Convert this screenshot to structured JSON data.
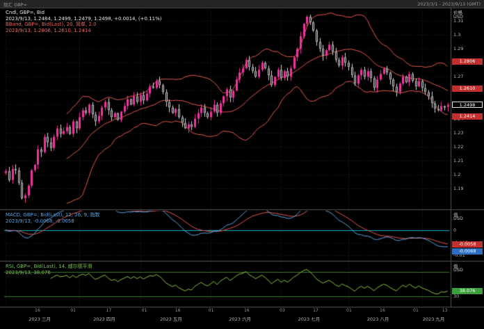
{
  "window": {
    "title_left": "现汇 GBP=",
    "title_right": "2023/3/1 - 2023/9/13 (GMT)"
  },
  "panels": {
    "price": {
      "legend": [
        {
          "text": "Cndl, GBP=, Bid"
        },
        {
          "text": "2023/9/13, 1.2484, 1.2499, 1.2479, 1.2498, +0.0014, (+0.11%)"
        },
        {
          "text": "BBand, GBP=, Bid(Last), 20, 简单, 2.0"
        },
        {
          "text": "2023/9/13, 1.2806, 1.2610, 1.2414"
        }
      ],
      "axis_title": "价格",
      "axis_unit": "USD",
      "badges": [
        {
          "label": "1.2806",
          "value": 1.2806,
          "style": "red"
        },
        {
          "label": "1.2610",
          "value": 1.261,
          "style": "red"
        },
        {
          "label": "1.2498",
          "value": 1.2498,
          "style": "last"
        },
        {
          "label": "1.2414",
          "value": 1.2414,
          "style": "red"
        }
      ]
    },
    "macd": {
      "legend": [
        {
          "text": "MACD, GBP=, Bid(Last), 12, 26, 9, 指数"
        },
        {
          "text": "2023/9/13, -0.0068, -0.0058"
        }
      ],
      "axis_title": "值",
      "axis_unit": "USD",
      "badges": [
        {
          "label": "-0.0058",
          "value": -0.0058,
          "style": "red"
        },
        {
          "label": "-0.0068",
          "value": -0.0068,
          "style": "blue"
        }
      ]
    },
    "rsi": {
      "legend": [
        {
          "text": "RSI, GBP=, Bid(Last), 14, 威尔德平滑"
        },
        {
          "text": "2023/9/13, 38.076"
        }
      ],
      "axis_title": "值",
      "axis_unit": "USD",
      "badges": [
        {
          "label": "38.076",
          "value": 38.076,
          "style": "green"
        }
      ]
    }
  },
  "x_axis": {
    "minor": [
      {
        "t": "16",
        "p": 0.075
      },
      {
        "t": "01",
        "p": 0.155
      },
      {
        "t": "17",
        "p": 0.235
      },
      {
        "t": "01",
        "p": 0.315
      },
      {
        "t": "16",
        "p": 0.39
      },
      {
        "t": "01",
        "p": 0.465
      },
      {
        "t": "16",
        "p": 0.545
      },
      {
        "t": "03",
        "p": 0.625
      },
      {
        "t": "17",
        "p": 0.7
      },
      {
        "t": "01",
        "p": 0.775
      },
      {
        "t": "16",
        "p": 0.85
      },
      {
        "t": "01",
        "p": 0.925
      },
      {
        "t": "13",
        "p": 0.99
      }
    ],
    "months": [
      {
        "t": "2023 三月",
        "p": 0.08
      },
      {
        "t": "2023 四月",
        "p": 0.225
      },
      {
        "t": "2023 五月",
        "p": 0.375
      },
      {
        "t": "2023 六月",
        "p": 0.53
      },
      {
        "t": "2023 七月",
        "p": 0.685
      },
      {
        "t": "2023 八月",
        "p": 0.84
      },
      {
        "t": "2023 九月",
        "p": 0.965
      }
    ]
  },
  "colors": {
    "background": "#000000",
    "candle_up": "#f0349e",
    "candle_down_border": "#d8d8d8",
    "bband": "#e8584f",
    "macd": "#58a6e8",
    "signal": "#e8584f",
    "zero_line": "#00b4c8",
    "rsi": "#8cc63e",
    "rsi_level": "#3c7a28",
    "badge_red": "#c22f2f",
    "badge_blue": "#2e6fc2",
    "badge_green": "#3da03d"
  },
  "chart_data": [
    {
      "type": "candlestick",
      "title": "Cndl, GBP=, Bid",
      "instrument": "GBP=",
      "last_bar": {
        "date": "2023/9/13",
        "open": 1.2484,
        "high": 1.2499,
        "low": 1.2479,
        "close": 1.2498,
        "change": 0.0014,
        "change_pct": "+0.11%"
      },
      "closes": [
        1.2025,
        1.196,
        1.204,
        1.203,
        1.194,
        1.183,
        1.185,
        1.192,
        1.203,
        1.207,
        1.218,
        1.216,
        1.227,
        1.223,
        1.219,
        1.227,
        1.233,
        1.229,
        1.231,
        1.234,
        1.229,
        1.238,
        1.233,
        1.241,
        1.246,
        1.244,
        1.25,
        1.243,
        1.238,
        1.242,
        1.248,
        1.252,
        1.246,
        1.241,
        1.244,
        1.239,
        1.245,
        1.249,
        1.254,
        1.25,
        1.256,
        1.252,
        1.257,
        1.253,
        1.258,
        1.263,
        1.262,
        1.267,
        1.264,
        1.259,
        1.252,
        1.248,
        1.244,
        1.247,
        1.241,
        1.237,
        1.233,
        1.236,
        1.234,
        1.24,
        1.244,
        1.248,
        1.244,
        1.241,
        1.245,
        1.25,
        1.244,
        1.251,
        1.256,
        1.261,
        1.255,
        1.26,
        1.268,
        1.273,
        1.276,
        1.282,
        1.277,
        1.274,
        1.27,
        1.275,
        1.28,
        1.276,
        1.271,
        1.264,
        1.27,
        1.275,
        1.269,
        1.274,
        1.27,
        1.276,
        1.284,
        1.29,
        1.299,
        1.308,
        1.313,
        1.309,
        1.303,
        1.295,
        1.29,
        1.285,
        1.289,
        1.293,
        1.288,
        1.282,
        1.278,
        1.284,
        1.28,
        1.277,
        1.271,
        1.265,
        1.271,
        1.275,
        1.27,
        1.274,
        1.269,
        1.262,
        1.268,
        1.272,
        1.276,
        1.273,
        1.268,
        1.263,
        1.259,
        1.265,
        1.27,
        1.266,
        1.272,
        1.267,
        1.263,
        1.267,
        1.262,
        1.259,
        1.256,
        1.251,
        1.247,
        1.246,
        1.249,
        1.2484,
        1.2498
      ],
      "month_start_indices": [
        0,
        23,
        42,
        64,
        86,
        107,
        130
      ],
      "ylim": [
        1.176,
        1.318
      ],
      "yticks": [
        1.19,
        1.2,
        1.21,
        1.22,
        1.23,
        1.24,
        1.25,
        1.26,
        1.27,
        1.28,
        1.29,
        1.3,
        1.31
      ],
      "overlay": {
        "name": "BBand",
        "period": 20,
        "stdev": 2.0,
        "ma_type": "简单",
        "last": {
          "upper": 1.2806,
          "middle": 1.261,
          "lower": 1.2414
        }
      }
    },
    {
      "type": "line",
      "name": "MACD",
      "params": {
        "fast": 12,
        "slow": 26,
        "signal": 9,
        "method": "指数"
      },
      "derived_from": "closes",
      "ylim": [
        -0.0115,
        0.0075
      ],
      "yticks": [
        0,
        -0.005,
        -0.01
      ],
      "zero_line": 0,
      "last": {
        "macd": -0.0068,
        "signal": -0.0058
      }
    },
    {
      "type": "line",
      "name": "RSI",
      "params": {
        "period": 14,
        "method": "威尔德平滑"
      },
      "derived_from": "closes",
      "ylim": [
        15,
        85
      ],
      "levels": [
        30,
        70
      ],
      "yticks": [
        30
      ],
      "last": 38.076
    }
  ]
}
